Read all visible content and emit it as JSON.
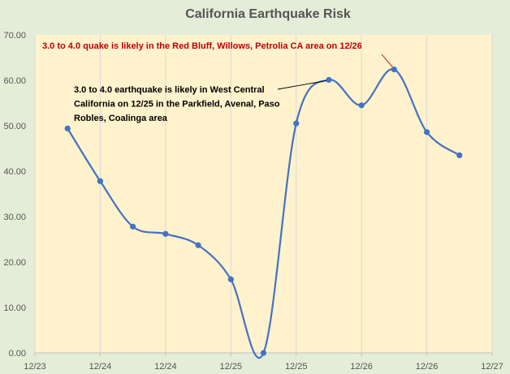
{
  "chart_data": {
    "type": "line",
    "title": "California Earthquake Risk",
    "xlabel": "",
    "ylabel": "",
    "ylim": [
      0,
      70
    ],
    "x_tick_labels": [
      "12/23",
      "12/24",
      "12/24",
      "12/25",
      "12/25",
      "12/26",
      "12/26",
      "12/27"
    ],
    "y_tick_labels": [
      "0.00",
      "10.00",
      "20.00",
      "30.00",
      "40.00",
      "50.00",
      "60.00",
      "70.00"
    ],
    "x": [
      0.5,
      1.0,
      1.5,
      2.0,
      2.5,
      3.0,
      3.5,
      4.0,
      4.5,
      5.0,
      5.5,
      6.0,
      6.5
    ],
    "series": [
      {
        "values": [
          49.4,
          37.8,
          27.8,
          26.2,
          23.7,
          16.2,
          0.0,
          50.5,
          60.1,
          54.5,
          62.4,
          48.6,
          43.5
        ]
      }
    ],
    "grid": "vertical",
    "colors": {
      "line": "#4472c4",
      "plot_background": "#fff2cc",
      "gridline": "#d9d9d9",
      "annotation_red": "#c00000",
      "annotation_black": "#000000"
    },
    "annotations": [
      {
        "text": "3.0 to 4.0 quake is likely in the Red Bluff, Willows, Petrolia CA area on 12/26",
        "color": "annotation_red",
        "point_index": 10
      },
      {
        "lines": [
          "3.0 to 4.0 earthquake is likely in West Central",
          "California on 12/25 in the Parkfield, Avenal, Paso",
          "Robles, Coalinga area"
        ],
        "color": "annotation_black",
        "point_index": 8
      }
    ]
  }
}
